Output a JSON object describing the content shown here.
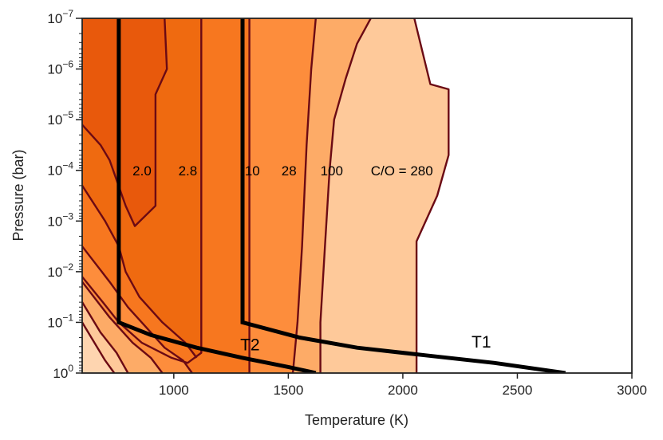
{
  "chart_data": {
    "type": "contour",
    "xlabel": "Temperature (K)",
    "ylabel": "Pressure (bar)",
    "xlim": [
      600,
      3000
    ],
    "ylim_log10": [
      0,
      -7
    ],
    "y_scale": "log",
    "y_inverted": true,
    "x_ticks": [
      1000,
      1500,
      2000,
      2500,
      3000
    ],
    "y_ticks": [
      {
        "base": "10",
        "exp": "0",
        "log10": 0
      },
      {
        "base": "10",
        "exp": "−1",
        "log10": -1
      },
      {
        "base": "10",
        "exp": "−2",
        "log10": -2
      },
      {
        "base": "10",
        "exp": "−3",
        "log10": -3
      },
      {
        "base": "10",
        "exp": "−4",
        "log10": -4
      },
      {
        "base": "10",
        "exp": "−5",
        "log10": -5
      },
      {
        "base": "10",
        "exp": "−6",
        "log10": -6
      },
      {
        "base": "10",
        "exp": "−7",
        "log10": -7
      }
    ],
    "fill_colors": [
      "#fec99a",
      "#fdab67",
      "#fd8d3c",
      "#f7771f",
      "#ef6a10",
      "#e8590c",
      "#d94801"
    ],
    "contour_line_color": "#6b0a14",
    "contour_levels": [
      {
        "label": "C/O = 280",
        "x": 1860,
        "log10_p": -3.9
      },
      {
        "label": "100",
        "x": 1640,
        "log10_p": -3.9
      },
      {
        "label": "28",
        "x": 1470,
        "log10_p": -3.9
      },
      {
        "label": "10",
        "x": 1310,
        "log10_p": -3.9
      },
      {
        "label": "2.8",
        "x": 1020,
        "log10_p": -3.9
      },
      {
        "label": "2.0",
        "x": 820,
        "log10_p": -3.9
      }
    ],
    "contour_boundaries": [
      [
        [
          2050,
          -7
        ],
        [
          2120,
          -5.7
        ],
        [
          2200,
          -5.6
        ],
        [
          2200,
          -4.3
        ],
        [
          2150,
          -3.5
        ],
        [
          2060,
          -2.6
        ],
        [
          2060,
          0
        ]
      ],
      [
        [
          1860,
          -7
        ],
        [
          1800,
          -6.5
        ],
        [
          1750,
          -5.8
        ],
        [
          1700,
          -5.0
        ],
        [
          1680,
          -4.0
        ],
        [
          1660,
          -2.5
        ],
        [
          1640,
          -1.0
        ],
        [
          1640,
          0
        ]
      ],
      [
        [
          1620,
          -7
        ],
        [
          1600,
          -6.0
        ],
        [
          1580,
          -4.5
        ],
        [
          1560,
          -2.5
        ],
        [
          1540,
          -1.0
        ],
        [
          1520,
          0
        ]
      ],
      [
        [
          1330,
          -7
        ],
        [
          1330,
          0
        ]
      ],
      [
        [
          1120,
          -7
        ],
        [
          1120,
          -0.4
        ],
        [
          1060,
          -0.2
        ],
        [
          990,
          -0.3
        ],
        [
          860,
          -0.6
        ],
        [
          760,
          -1.0
        ],
        [
          690,
          -1.4
        ],
        [
          600,
          -1.9
        ]
      ],
      [
        [
          960,
          -7
        ],
        [
          970,
          -6.0
        ],
        [
          920,
          -5.5
        ],
        [
          920,
          -3.3
        ],
        [
          830,
          -2.9
        ],
        [
          790,
          -3.3
        ],
        [
          720,
          -4.2
        ],
        [
          680,
          -4.5
        ],
        [
          600,
          -4.9
        ]
      ],
      [
        [
          600,
          -3.7
        ],
        [
          700,
          -3.0
        ],
        [
          760,
          -2.5
        ],
        [
          790,
          -2.0
        ],
        [
          850,
          -1.5
        ],
        [
          950,
          -1.0
        ],
        [
          1050,
          -0.6
        ],
        [
          1100,
          -0.3
        ]
      ],
      [
        [
          600,
          -2.5
        ],
        [
          720,
          -1.8
        ],
        [
          800,
          -1.3
        ],
        [
          880,
          -0.9
        ],
        [
          960,
          -0.5
        ],
        [
          1040,
          -0.25
        ],
        [
          1080,
          0
        ]
      ],
      [
        [
          600,
          -1.8
        ],
        [
          720,
          -1.1
        ],
        [
          820,
          -0.6
        ],
        [
          900,
          -0.3
        ],
        [
          950,
          0
        ]
      ],
      [
        [
          600,
          -1.4
        ],
        [
          680,
          -0.8
        ],
        [
          750,
          -0.4
        ],
        [
          800,
          0
        ]
      ],
      [
        [
          600,
          -1.0
        ],
        [
          660,
          -0.55
        ],
        [
          700,
          -0.25
        ],
        [
          740,
          0
        ]
      ]
    ],
    "pt_profiles": [
      {
        "name": "T1",
        "label_x": 2300,
        "label_log10_p": -0.5,
        "points": [
          [
            1300,
            -7
          ],
          [
            1300,
            -1.0
          ],
          [
            1550,
            -0.7
          ],
          [
            1800,
            -0.5
          ],
          [
            2100,
            -0.35
          ],
          [
            2400,
            -0.2
          ],
          [
            2710,
            0
          ]
        ]
      },
      {
        "name": "T2",
        "label_x": 1290,
        "label_log10_p": -0.45,
        "points": [
          [
            760,
            -7
          ],
          [
            760,
            -1.0
          ],
          [
            900,
            -0.75
          ],
          [
            1100,
            -0.5
          ],
          [
            1300,
            -0.3
          ],
          [
            1500,
            -0.12
          ],
          [
            1620,
            0
          ]
        ]
      }
    ]
  }
}
